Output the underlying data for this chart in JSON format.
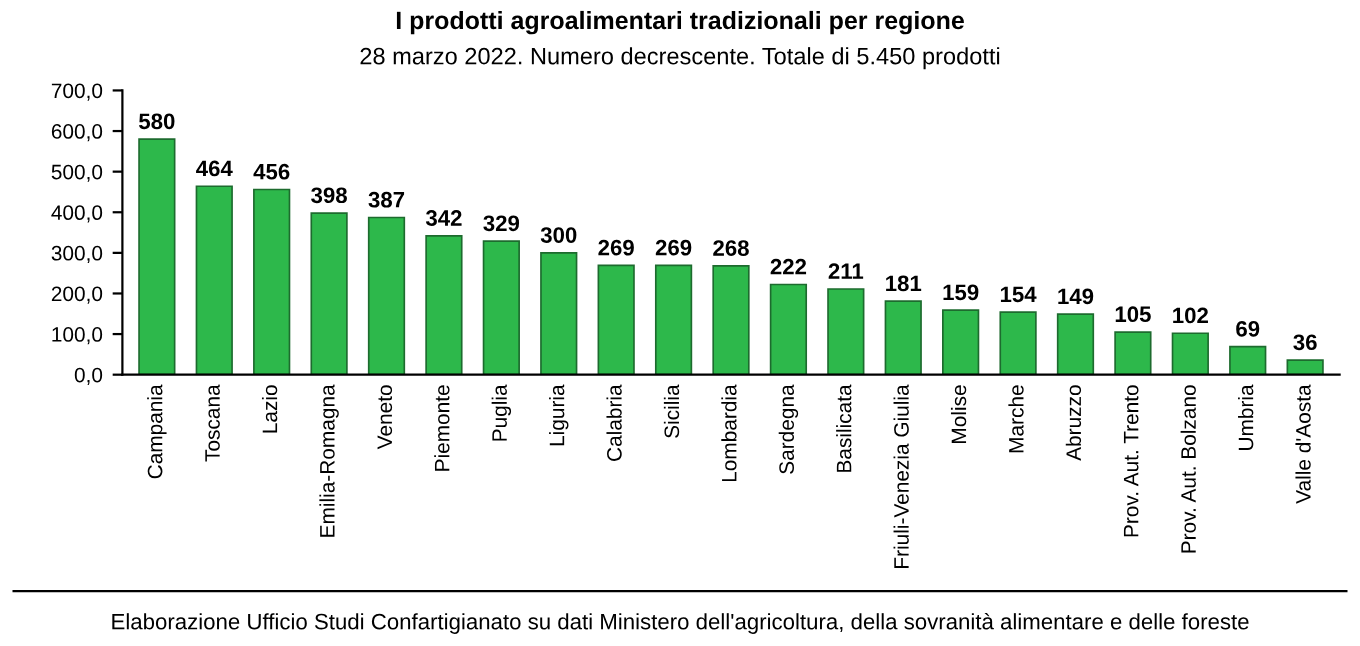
{
  "chart_data": {
    "type": "bar",
    "title": "I prodotti agroalimentari tradizionali per regione",
    "subtitle": "28 marzo 2022. Numero decrescente. Totale di 5.450 prodotti",
    "categories": [
      "Campania",
      "Toscana",
      "Lazio",
      "Emilia-Romagna",
      "Veneto",
      "Piemonte",
      "Puglia",
      "Liguria",
      "Calabria",
      "Sicilia",
      "Lombardia",
      "Sardegna",
      "Basilicata",
      "Friuli-Venezia Giulia",
      "Molise",
      "Marche",
      "Abruzzo",
      "Prov. Aut. Trento",
      "Prov. Aut. Bolzano",
      "Umbria",
      "Valle d'Aosta"
    ],
    "values": [
      580,
      464,
      456,
      398,
      387,
      342,
      329,
      300,
      269,
      269,
      268,
      222,
      211,
      181,
      159,
      154,
      149,
      105,
      102,
      69,
      36
    ],
    "color": "#2db84b",
    "data_labels": true,
    "grid": false,
    "legend": false,
    "ylim": [
      0,
      700
    ],
    "yticks": [
      {
        "value": 0,
        "label": "0,0"
      },
      {
        "value": 100,
        "label": "100,0"
      },
      {
        "value": 200,
        "label": "200,0"
      },
      {
        "value": 300,
        "label": "300,0"
      },
      {
        "value": 400,
        "label": "400,0"
      },
      {
        "value": 500,
        "label": "500,0"
      },
      {
        "value": 600,
        "label": "600,0"
      },
      {
        "value": 700,
        "label": "700,0"
      }
    ],
    "annotations": [
      "Elaborazione Ufficio Studi Confartigianato su dati Ministero dell'agricoltura, della sovranità alimentare e delle foreste"
    ]
  }
}
